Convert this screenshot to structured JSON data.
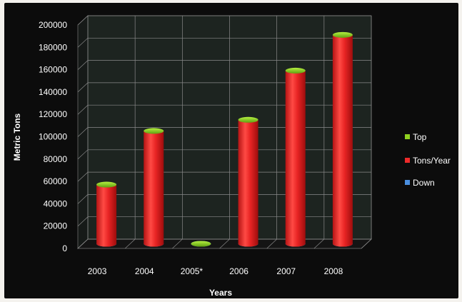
{
  "chart_data": {
    "type": "bar",
    "style": "3d-cylinder",
    "categories": [
      "2003",
      "2004",
      "2005*",
      "2006",
      "2007",
      "2008"
    ],
    "series": [
      {
        "name": "Top",
        "color": "#8fd11f"
      },
      {
        "name": "Tons/Year",
        "color": "#ee2a2a",
        "values": [
          53000,
          101000,
          0,
          111000,
          155000,
          187000
        ]
      },
      {
        "name": "Down",
        "color": "#4a8fe0"
      }
    ],
    "xlabel": "Years",
    "ylabel": "Metric Tons",
    "ylim": [
      0,
      200000
    ],
    "yticks": [
      "0",
      "20000",
      "40000",
      "60000",
      "80000",
      "100000",
      "120000",
      "140000",
      "160000",
      "180000",
      "200000"
    ],
    "grid": true,
    "legend": "right"
  }
}
